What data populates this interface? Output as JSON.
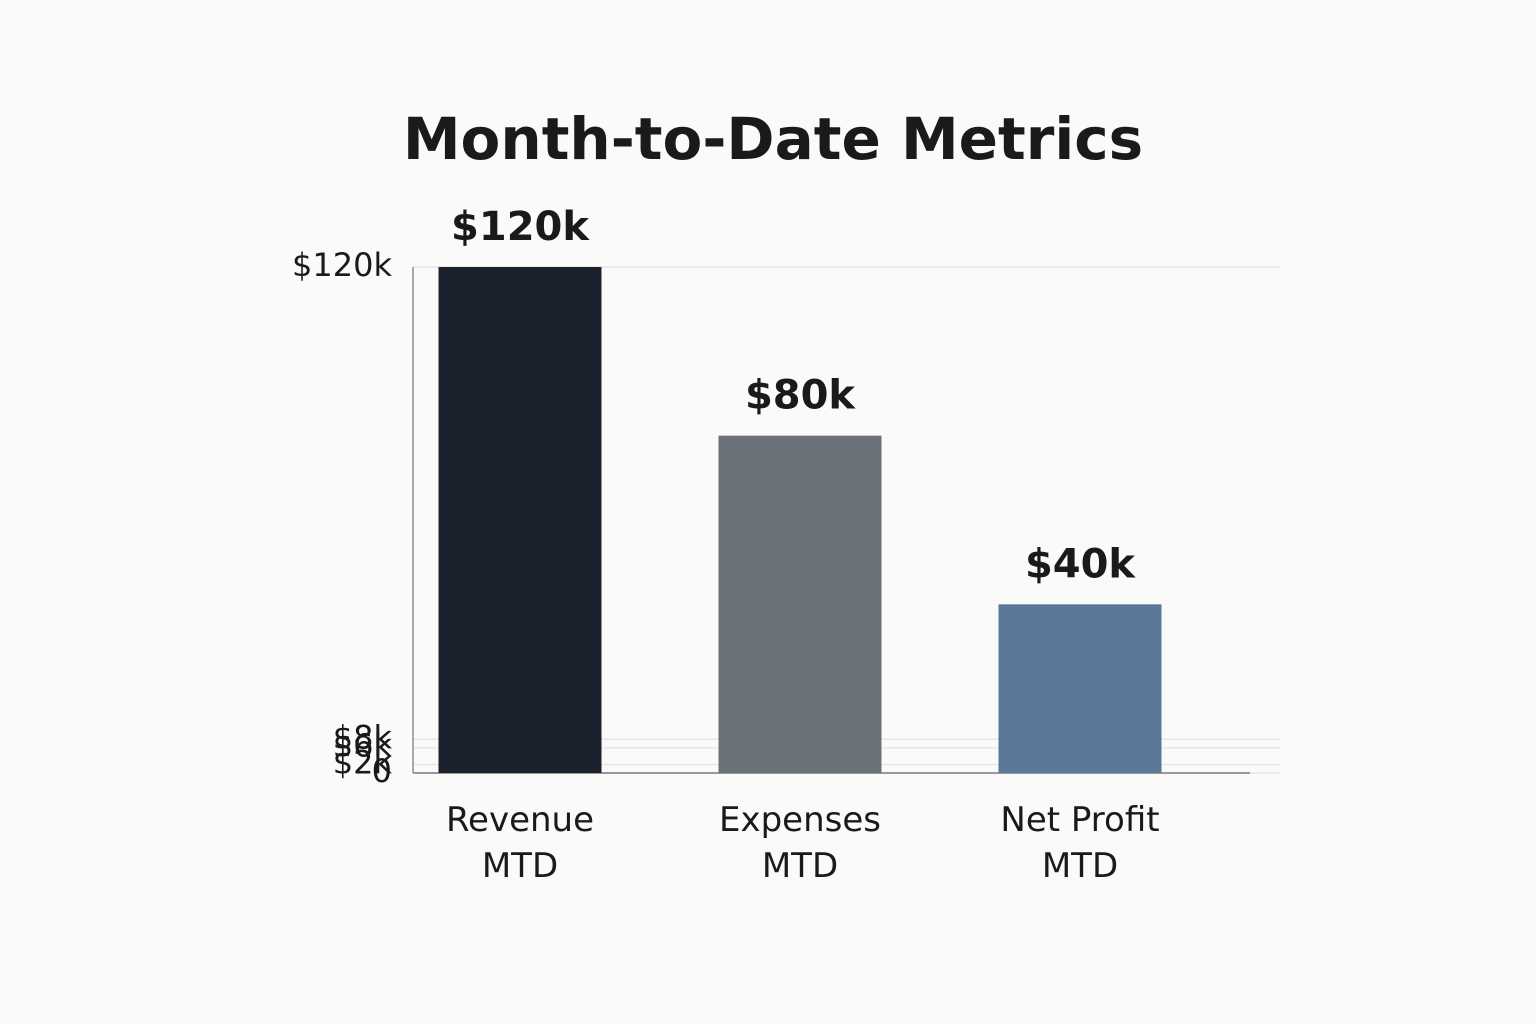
{
  "chart_data": {
    "type": "bar",
    "title": "Month-to-Date Metrics",
    "categories": [
      "Revenue MTD",
      "Expenses MTD",
      "Net Profit MTD"
    ],
    "values": [
      120000,
      80000,
      40000
    ],
    "value_labels": [
      "$120k",
      "$80k",
      "$40k"
    ],
    "colors": [
      "#1a202c",
      "#6b7178",
      "#5b7899"
    ],
    "ylim": [
      0,
      120000
    ],
    "yticks": [
      0,
      {
        "value": 2000,
        "label": "$2k"
      },
      {
        "value": 6000,
        "label": "$6k"
      },
      {
        "value": 8000,
        "label": "$8k"
      },
      {
        "value": 120000,
        "label": "$120k"
      }
    ],
    "grid": true
  }
}
